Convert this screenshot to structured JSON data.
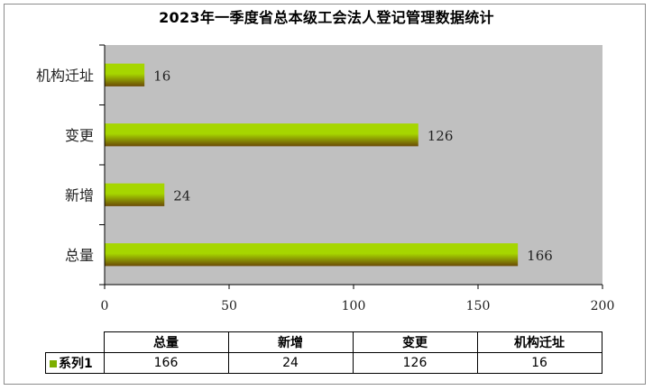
{
  "colors": {
    "plot_background": "#c0c0c0",
    "bar_light": "#a6d600",
    "bar_dark": "#6b4a06",
    "series_swatch": "#7cae00"
  },
  "chart_data": {
    "type": "bar",
    "orientation": "horizontal",
    "title": "2023年一季度省总本级工会法人登记管理数据统计",
    "categories": [
      "总量",
      "新增",
      "变更",
      "机构迁址"
    ],
    "series": [
      {
        "name": "系列1",
        "values": [
          166,
          24,
          126,
          16
        ]
      }
    ],
    "xlim": [
      0,
      200
    ],
    "x_ticks": [
      "0",
      "50",
      "100",
      "150",
      "200"
    ],
    "xlabel": "",
    "ylabel": "",
    "grid": false,
    "legend": "data-table-below",
    "data_labels": [
      "166",
      "24",
      "126",
      "16"
    ]
  },
  "table": {
    "headers": [
      "总量",
      "新增",
      "变更",
      "机构迁址"
    ],
    "series_label": "系列1",
    "values": [
      "166",
      "24",
      "126",
      "16"
    ]
  }
}
